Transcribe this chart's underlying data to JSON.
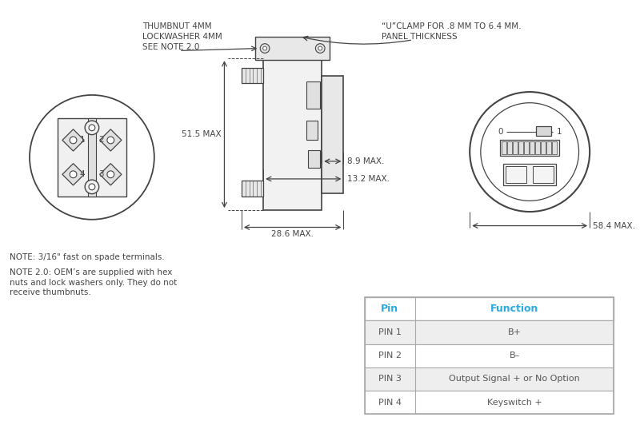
{
  "bg_color": "#ffffff",
  "line_color": "#444444",
  "dim_color": "#444444",
  "cyan_color": "#29ABE2",
  "table_border": "#aaaaaa",
  "table_row_bg_alt": "#eeeeee",
  "table_row_bg_white": "#ffffff",
  "pin_col_header": "Pin",
  "func_col_header": "Function",
  "pins": [
    "PIN 1",
    "PIN 2",
    "PIN 3",
    "PIN 4"
  ],
  "functions": [
    "B+",
    "B–",
    "Output Signal + or No Option",
    "Keyswitch +"
  ],
  "note1": "NOTE: 3/16\" fast on spade terminals.",
  "note2_line1": "NOTE 2.0: OEM’s are supplied with hex",
  "note2_line2": "nuts and lock washers only. They do not",
  "note2_line3": "receive thumbnuts.",
  "label_thumbnut_1": "THUMBNUT 4MM",
  "label_thumbnut_2": "LOCKWASHER 4MM",
  "label_thumbnut_3": "SEE NOTE 2.0",
  "label_uclamp_1": "“U”CLAMP FOR .8 MM TO 6.4 MM.",
  "label_uclamp_2": "PANEL THICKNESS",
  "dim_51_5": "51.5 MAX",
  "dim_8_9": "8.9 MAX.",
  "dim_13_2": "13.2 MAX.",
  "dim_28_6": "28.6 MAX.",
  "dim_58_4": "58.4 MAX."
}
